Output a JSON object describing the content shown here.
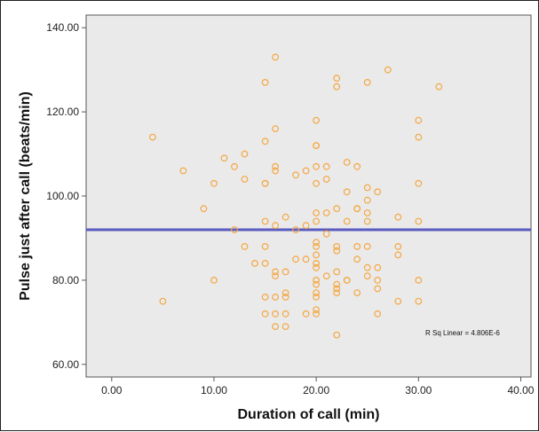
{
  "chart_data": {
    "type": "scatter",
    "xlabel": "Duration of call (min)",
    "ylabel": "Pulse just after call (beats/min)",
    "xlim": [
      -2.5,
      41
    ],
    "ylim": [
      57,
      143
    ],
    "x_ticks": [
      0,
      10,
      20,
      30,
      40
    ],
    "y_ticks": [
      60,
      80,
      100,
      120,
      140
    ],
    "x_tick_labels": [
      "0.00",
      "10.00",
      "20.00",
      "30.00",
      "40.00"
    ],
    "y_tick_labels": [
      "60.00",
      "80.00",
      "100.00",
      "120.00",
      "140.00"
    ],
    "grid": false,
    "legend": null,
    "fit_line": {
      "label": "R Sq Linear = 4.806E-6",
      "intercept": 92,
      "slope": 0.0,
      "color": "#5a5bc0"
    },
    "colors": {
      "plot_background": "#eaeaea",
      "point": "#f5a742"
    },
    "points": [
      [
        4,
        114
      ],
      [
        5,
        75
      ],
      [
        7,
        106
      ],
      [
        9,
        97
      ],
      [
        10,
        103
      ],
      [
        10,
        80
      ],
      [
        11,
        109
      ],
      [
        12,
        107
      ],
      [
        12,
        92
      ],
      [
        13,
        110
      ],
      [
        13,
        104
      ],
      [
        13,
        88
      ],
      [
        14,
        84
      ],
      [
        15,
        127
      ],
      [
        15,
        113
      ],
      [
        15,
        103
      ],
      [
        15,
        103
      ],
      [
        15,
        94
      ],
      [
        15,
        88
      ],
      [
        15,
        84
      ],
      [
        15,
        76
      ],
      [
        15,
        72
      ],
      [
        16,
        133
      ],
      [
        16,
        116
      ],
      [
        16,
        107
      ],
      [
        16,
        106
      ],
      [
        16,
        93
      ],
      [
        16,
        82
      ],
      [
        16,
        81
      ],
      [
        16,
        76
      ],
      [
        16,
        72
      ],
      [
        16,
        69
      ],
      [
        17,
        95
      ],
      [
        17,
        82
      ],
      [
        17,
        77
      ],
      [
        17,
        76
      ],
      [
        17,
        72
      ],
      [
        17,
        69
      ],
      [
        18,
        105
      ],
      [
        18,
        92
      ],
      [
        18,
        85
      ],
      [
        19,
        106
      ],
      [
        19,
        93
      ],
      [
        19,
        85
      ],
      [
        19,
        72
      ],
      [
        20,
        118
      ],
      [
        20,
        112
      ],
      [
        20,
        112
      ],
      [
        20,
        107
      ],
      [
        20,
        103
      ],
      [
        20,
        96
      ],
      [
        20,
        94
      ],
      [
        20,
        89
      ],
      [
        20,
        88
      ],
      [
        20,
        86
      ],
      [
        20,
        84
      ],
      [
        20,
        83
      ],
      [
        20,
        80
      ],
      [
        20,
        79
      ],
      [
        20,
        77
      ],
      [
        20,
        76
      ],
      [
        20,
        73
      ],
      [
        20,
        72
      ],
      [
        21,
        107
      ],
      [
        21,
        104
      ],
      [
        21,
        96
      ],
      [
        21,
        91
      ],
      [
        21,
        81
      ],
      [
        22,
        128
      ],
      [
        22,
        126
      ],
      [
        22,
        97
      ],
      [
        22,
        88
      ],
      [
        22,
        87
      ],
      [
        22,
        82
      ],
      [
        22,
        79
      ],
      [
        22,
        78
      ],
      [
        22,
        77
      ],
      [
        22,
        67
      ],
      [
        23,
        108
      ],
      [
        23,
        101
      ],
      [
        23,
        94
      ],
      [
        23,
        80
      ],
      [
        23,
        80
      ],
      [
        24,
        107
      ],
      [
        24,
        97
      ],
      [
        24,
        97
      ],
      [
        24,
        88
      ],
      [
        24,
        85
      ],
      [
        24,
        77
      ],
      [
        25,
        127
      ],
      [
        25,
        102
      ],
      [
        25,
        99
      ],
      [
        25,
        96
      ],
      [
        25,
        94
      ],
      [
        25,
        88
      ],
      [
        25,
        83
      ],
      [
        25,
        81
      ],
      [
        26,
        101
      ],
      [
        26,
        83
      ],
      [
        26,
        80
      ],
      [
        26,
        78
      ],
      [
        26,
        72
      ],
      [
        27,
        130
      ],
      [
        28,
        95
      ],
      [
        28,
        88
      ],
      [
        28,
        86
      ],
      [
        28,
        75
      ],
      [
        30,
        118
      ],
      [
        30,
        114
      ],
      [
        30,
        103
      ],
      [
        30,
        94
      ],
      [
        30,
        80
      ],
      [
        30,
        75
      ],
      [
        32,
        126
      ]
    ]
  }
}
